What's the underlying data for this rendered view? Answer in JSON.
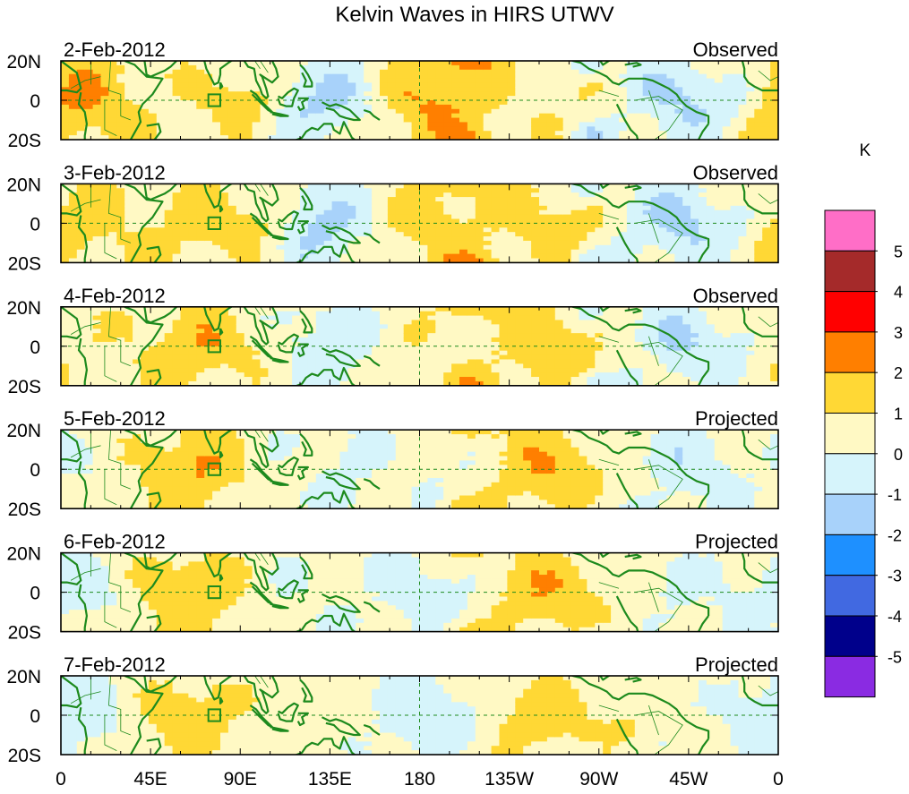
{
  "chart_data": {
    "type": "heatmap",
    "title": "Kelvin Waves in HIRS UTWV",
    "x_ticks": [
      "0",
      "45E",
      "90E",
      "135E",
      "180",
      "135W",
      "90W",
      "45W",
      "0"
    ],
    "y_ticks": [
      "20N",
      "0",
      "20S"
    ],
    "colorbar": {
      "unit": "K",
      "labels": [
        "5",
        "4",
        "3",
        "2",
        "1",
        "0",
        "-1",
        "-2",
        "-3",
        "-4",
        "-5"
      ],
      "colors": [
        "#ff6ec7",
        "#a52a2a",
        "#ff0000",
        "#ff7f00",
        "#ffd835",
        "#fff9c4",
        "#d6f4fb",
        "#a8d2fa",
        "#1e90ff",
        "#4169e1",
        "#00008b",
        "#8a2be2"
      ]
    },
    "panels": [
      {
        "date": "2-Feb-2012",
        "status": "Observed",
        "shift": 0
      },
      {
        "date": "3-Feb-2012",
        "status": "Observed",
        "shift": 1
      },
      {
        "date": "4-Feb-2012",
        "status": "Observed",
        "shift": 2
      },
      {
        "date": "5-Feb-2012",
        "status": "Projected",
        "shift": 3
      },
      {
        "date": "6-Feb-2012",
        "status": "Projected",
        "shift": 4
      },
      {
        "date": "7-Feb-2012",
        "status": "Projected",
        "shift": 5
      }
    ]
  }
}
